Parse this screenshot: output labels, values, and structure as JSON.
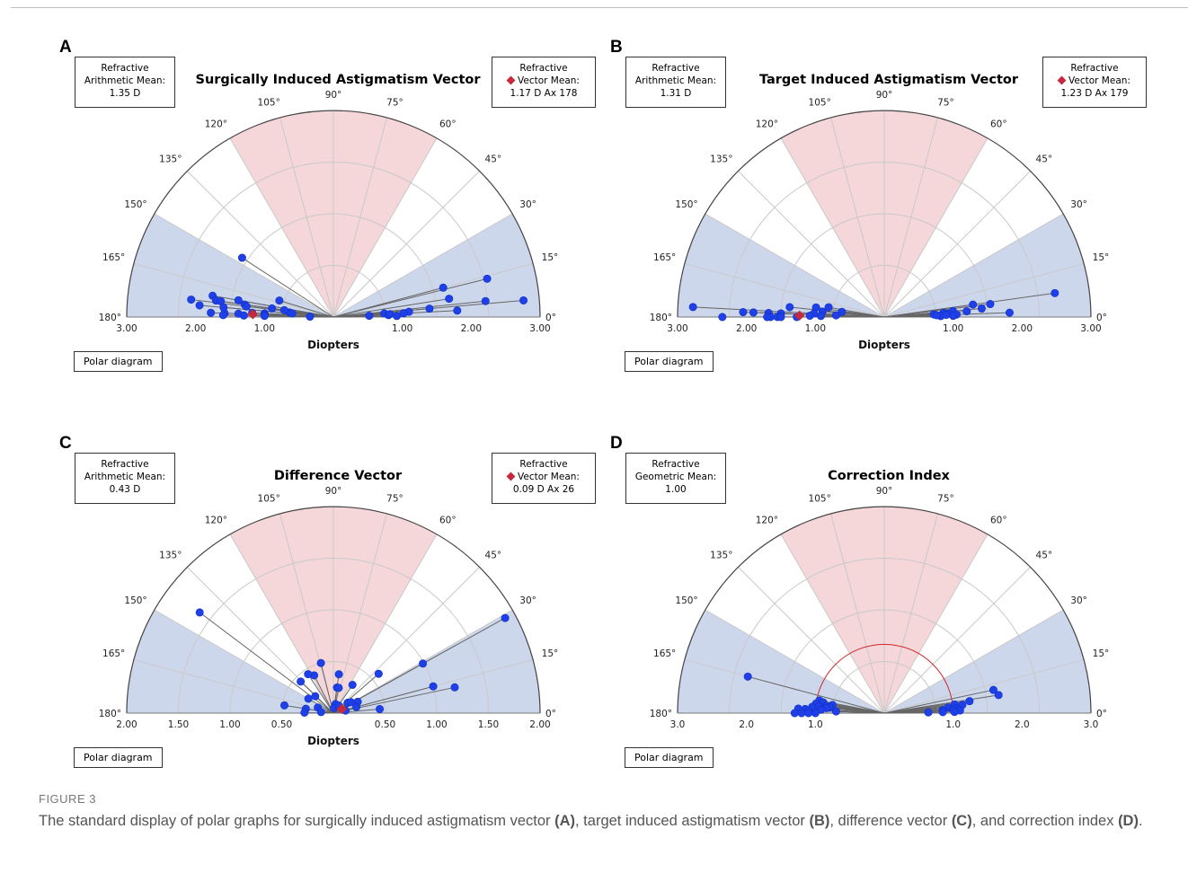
{
  "figure": {
    "label": "FIGURE 3",
    "caption_parts": [
      {
        "t": "The standard display of polar graphs for surgically induced astigmatism vector ",
        "b": false
      },
      {
        "t": "(A)",
        "b": true
      },
      {
        "t": ", target induced astigmatism vector ",
        "b": false
      },
      {
        "t": "(B)",
        "b": true
      },
      {
        "t": ", difference vector ",
        "b": false
      },
      {
        "t": "(C)",
        "b": true
      },
      {
        "t": ", and correction index ",
        "b": false
      },
      {
        "t": "(D)",
        "b": true
      },
      {
        "t": ".",
        "b": false
      }
    ]
  },
  "colors": {
    "point": "#1f3fe8",
    "mean_marker": "#c8283c",
    "pink_sector": "#f5d6d9",
    "blue_sector": "#cdd7ec",
    "unit_arc": "#d0262c"
  },
  "angle_labels": [
    "0°",
    "15°",
    "30°",
    "45°",
    "60°",
    "75°",
    "90°",
    "105°",
    "120°",
    "135°",
    "150°",
    "165°",
    "180°"
  ],
  "panels": [
    {
      "id": "A",
      "title": "Surgically Induced Astigmatism Vector",
      "left_box": [
        "Refractive",
        "Arithmetic Mean:",
        "1.35 D"
      ],
      "right_box": [
        "Refractive",
        "Vector Mean:",
        "1.17 D Ax 178"
      ],
      "polar_label": "Polar diagram",
      "axis_title": "Diopters",
      "left_ticks": [
        "3.00",
        "2.00",
        "1.00"
      ],
      "right_ticks": [
        "1.00",
        "2.00",
        "3.00"
      ],
      "chart_data": {
        "type": "scatter",
        "subtype": "polar-half",
        "rmax": 3.0,
        "mean": {
          "r": 1.17,
          "axis": 178
        },
        "points": [
          {
            "r": 1.58,
            "deg": 147
          },
          {
            "r": 0.82,
            "deg": 163
          },
          {
            "r": 1.78,
            "deg": 170
          },
          {
            "r": 2.08,
            "deg": 173
          },
          {
            "r": 1.72,
            "deg": 172
          },
          {
            "r": 1.4,
            "deg": 170
          },
          {
            "r": 0.9,
            "deg": 172
          },
          {
            "r": 1.3,
            "deg": 172
          },
          {
            "r": 1.27,
            "deg": 173
          },
          {
            "r": 0.64,
            "deg": 174
          },
          {
            "r": 0.6,
            "deg": 175
          },
          {
            "r": 1.65,
            "deg": 172
          },
          {
            "r": 1.95,
            "deg": 175
          },
          {
            "r": 1.6,
            "deg": 175
          },
          {
            "r": 1.18,
            "deg": 177
          },
          {
            "r": 1.0,
            "deg": 177
          },
          {
            "r": 0.72,
            "deg": 172
          },
          {
            "r": 1.78,
            "deg": 178
          },
          {
            "r": 1.58,
            "deg": 178
          },
          {
            "r": 1.38,
            "deg": 178
          },
          {
            "r": 1.0,
            "deg": 178
          },
          {
            "r": 1.3,
            "deg": 179
          },
          {
            "r": 1.6,
            "deg": 179
          },
          {
            "r": 1.0,
            "deg": 179
          },
          {
            "r": 0.34,
            "deg": 179
          },
          {
            "r": 1.65,
            "deg": 15
          },
          {
            "r": 2.3,
            "deg": 14
          },
          {
            "r": 1.7,
            "deg": 9
          },
          {
            "r": 2.77,
            "deg": 5
          },
          {
            "r": 2.22,
            "deg": 6
          },
          {
            "r": 1.4,
            "deg": 5
          },
          {
            "r": 1.1,
            "deg": 4
          },
          {
            "r": 0.74,
            "deg": 4
          },
          {
            "r": 0.8,
            "deg": 2
          },
          {
            "r": 0.52,
            "deg": 2
          },
          {
            "r": 0.82,
            "deg": 3
          },
          {
            "r": 1.02,
            "deg": 3
          },
          {
            "r": 1.8,
            "deg": 3
          },
          {
            "r": 0.92,
            "deg": 1
          }
        ]
      }
    },
    {
      "id": "B",
      "title": "Target Induced Astigmatism Vector",
      "left_box": [
        "Refractive",
        "Arithmetic Mean:",
        "1.31 D"
      ],
      "right_box": [
        "Refractive",
        "Vector Mean:",
        "1.23 D Ax 179"
      ],
      "polar_label": "Polar diagram",
      "axis_title": "Diopters",
      "left_ticks": [
        "3.00",
        "2.00",
        "1.00"
      ],
      "right_ticks": [
        "1.00",
        "2.00",
        "3.00"
      ],
      "chart_data": {
        "type": "scatter",
        "subtype": "polar-half",
        "rmax": 3.0,
        "mean": {
          "r": 1.23,
          "axis": 179
        },
        "points": [
          {
            "r": 0.82,
            "deg": 170
          },
          {
            "r": 2.78,
            "deg": 177
          },
          {
            "r": 1.38,
            "deg": 174
          },
          {
            "r": 1.0,
            "deg": 172
          },
          {
            "r": 0.9,
            "deg": 175
          },
          {
            "r": 0.62,
            "deg": 173
          },
          {
            "r": 1.02,
            "deg": 177
          },
          {
            "r": 2.05,
            "deg": 178
          },
          {
            "r": 1.9,
            "deg": 178
          },
          {
            "r": 1.68,
            "deg": 178
          },
          {
            "r": 1.5,
            "deg": 178
          },
          {
            "r": 0.7,
            "deg": 178
          },
          {
            "r": 1.08,
            "deg": 179
          },
          {
            "r": 0.92,
            "deg": 179
          },
          {
            "r": 2.35,
            "deg": 180
          },
          {
            "r": 1.65,
            "deg": 180
          },
          {
            "r": 1.55,
            "deg": 180
          },
          {
            "r": 1.5,
            "deg": 180
          },
          {
            "r": 1.7,
            "deg": 180
          },
          {
            "r": 1.27,
            "deg": 180
          },
          {
            "r": 2.5,
            "deg": 8
          },
          {
            "r": 1.3,
            "deg": 8
          },
          {
            "r": 1.55,
            "deg": 7
          },
          {
            "r": 1.42,
            "deg": 5
          },
          {
            "r": 1.0,
            "deg": 5
          },
          {
            "r": 0.86,
            "deg": 4
          },
          {
            "r": 1.2,
            "deg": 4
          },
          {
            "r": 0.72,
            "deg": 3
          },
          {
            "r": 0.92,
            "deg": 3
          },
          {
            "r": 1.82,
            "deg": 2
          },
          {
            "r": 1.05,
            "deg": 2
          },
          {
            "r": 0.82,
            "deg": 1
          },
          {
            "r": 1.0,
            "deg": 1
          },
          {
            "r": 0.9,
            "deg": 2
          },
          {
            "r": 0.76,
            "deg": 2
          }
        ]
      }
    },
    {
      "id": "C",
      "title": "Difference Vector",
      "left_box": [
        "Refractive",
        "Arithmetic Mean:",
        "0.43 D"
      ],
      "right_box": [
        "Refractive",
        "Vector Mean:",
        "0.09 D Ax 26"
      ],
      "polar_label": "Polar diagram",
      "axis_title": "Diopters",
      "left_ticks": [
        "2.00",
        "1.50",
        "1.00",
        "0.50"
      ],
      "right_ticks": [
        "0.50",
        "1.00",
        "1.50",
        "2.00"
      ],
      "chart_data": {
        "type": "scatter",
        "subtype": "polar-half",
        "rmax": 2.0,
        "mean": {
          "r": 0.09,
          "axis": 26
        },
        "points": [
          {
            "r": 1.62,
            "deg": 143
          },
          {
            "r": 0.5,
            "deg": 104
          },
          {
            "r": 0.41,
            "deg": 117
          },
          {
            "r": 0.45,
            "deg": 123
          },
          {
            "r": 0.44,
            "deg": 136
          },
          {
            "r": 0.24,
            "deg": 137
          },
          {
            "r": 0.28,
            "deg": 150
          },
          {
            "r": 0.48,
            "deg": 171
          },
          {
            "r": 0.27,
            "deg": 171
          },
          {
            "r": 0.16,
            "deg": 160
          },
          {
            "r": 0.28,
            "deg": 179
          },
          {
            "r": 0.12,
            "deg": 175
          },
          {
            "r": 0.38,
            "deg": 82
          },
          {
            "r": 0.25,
            "deg": 82
          },
          {
            "r": 0.25,
            "deg": 78
          },
          {
            "r": 0.09,
            "deg": 77
          },
          {
            "r": 0.05,
            "deg": 84
          },
          {
            "r": 0.09,
            "deg": 54
          },
          {
            "r": 0.17,
            "deg": 36
          },
          {
            "r": 0.2,
            "deg": 32
          },
          {
            "r": 0.12,
            "deg": 12
          },
          {
            "r": 0.26,
            "deg": 25
          },
          {
            "r": 0.23,
            "deg": 15
          },
          {
            "r": 0.33,
            "deg": 56
          },
          {
            "r": 0.58,
            "deg": 41
          },
          {
            "r": 0.99,
            "deg": 29
          },
          {
            "r": 1.9,
            "deg": 29
          },
          {
            "r": 1.0,
            "deg": 15
          },
          {
            "r": 1.2,
            "deg": 12
          },
          {
            "r": 0.45,
            "deg": 5
          }
        ]
      }
    },
    {
      "id": "D",
      "title": "Correction Index",
      "left_box": [
        "Refractive",
        "Geometric Mean:",
        "1.00"
      ],
      "right_box": null,
      "polar_label": "Polar diagram",
      "axis_title": "",
      "left_ticks": [
        "3.0",
        "2.0",
        "1.0"
      ],
      "right_ticks": [
        "1.0",
        "2.0",
        "3.0"
      ],
      "chart_data": {
        "type": "scatter",
        "subtype": "polar-half",
        "rmax": 3.0,
        "reference_arc_r": 1.0,
        "points": [
          {
            "r": 2.05,
            "deg": 165
          },
          {
            "r": 0.96,
            "deg": 169
          },
          {
            "r": 0.9,
            "deg": 170
          },
          {
            "r": 0.76,
            "deg": 171
          },
          {
            "r": 0.85,
            "deg": 173
          },
          {
            "r": 1.0,
            "deg": 172
          },
          {
            "r": 0.95,
            "deg": 174
          },
          {
            "r": 0.8,
            "deg": 174
          },
          {
            "r": 1.05,
            "deg": 175
          },
          {
            "r": 0.84,
            "deg": 175
          },
          {
            "r": 1.15,
            "deg": 177
          },
          {
            "r": 1.25,
            "deg": 177
          },
          {
            "r": 0.92,
            "deg": 177
          },
          {
            "r": 1.1,
            "deg": 178
          },
          {
            "r": 0.7,
            "deg": 178
          },
          {
            "r": 1.3,
            "deg": 180
          },
          {
            "r": 1.2,
            "deg": 180
          },
          {
            "r": 1.1,
            "deg": 180
          },
          {
            "r": 1.0,
            "deg": 180
          },
          {
            "r": 1.62,
            "deg": 12
          },
          {
            "r": 1.68,
            "deg": 9
          },
          {
            "r": 1.25,
            "deg": 8
          },
          {
            "r": 1.03,
            "deg": 7
          },
          {
            "r": 1.14,
            "deg": 6
          },
          {
            "r": 0.93,
            "deg": 5
          },
          {
            "r": 1.05,
            "deg": 4
          },
          {
            "r": 0.85,
            "deg": 3
          },
          {
            "r": 1.0,
            "deg": 3
          },
          {
            "r": 1.1,
            "deg": 2
          },
          {
            "r": 1.02,
            "deg": 1
          },
          {
            "r": 0.64,
            "deg": 1
          },
          {
            "r": 0.85,
            "deg": 1
          }
        ]
      }
    }
  ]
}
